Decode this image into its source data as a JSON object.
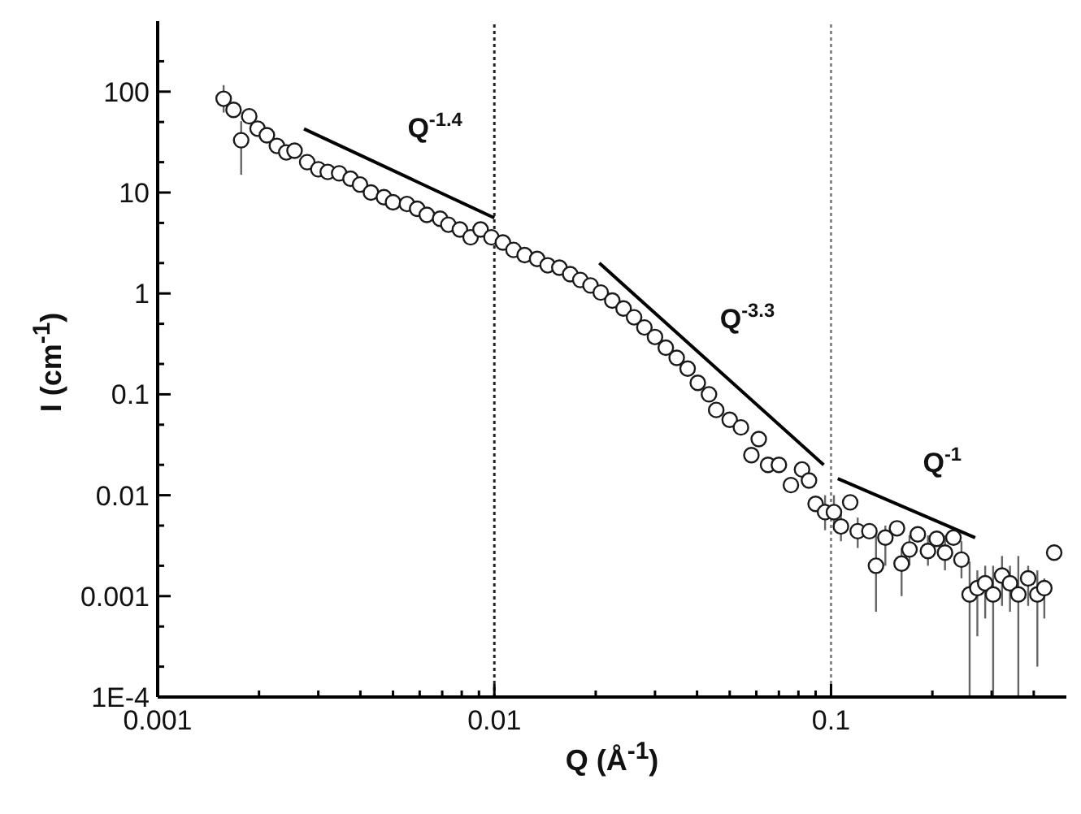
{
  "chart_data": {
    "type": "scatter",
    "xlabel": "Q (Å$^{-1}$)",
    "ylabel": "I (cm$^{-1}$)",
    "log": "xy",
    "xlim": [
      0.001,
      0.5
    ],
    "ylim": [
      0.0001,
      500
    ],
    "xticks": [
      0.001,
      {
        "value": 0.002,
        "label": null
      },
      {
        "value": 0.003,
        "label": null
      },
      {
        "value": 0.004,
        "label": null
      },
      {
        "value": 0.005,
        "label": null
      },
      {
        "value": 0.006,
        "label": null
      },
      {
        "value": 0.007,
        "label": null
      },
      {
        "value": 0.008,
        "label": null
      },
      {
        "value": 0.009,
        "label": null
      },
      0.01,
      {
        "value": 0.02,
        "label": null
      },
      {
        "value": 0.03,
        "label": null
      },
      {
        "value": 0.04,
        "label": null
      },
      {
        "value": 0.05,
        "label": null
      },
      {
        "value": 0.06,
        "label": null
      },
      {
        "value": 0.07,
        "label": null
      },
      {
        "value": 0.08,
        "label": null
      },
      {
        "value": 0.09,
        "label": null
      },
      0.1,
      {
        "value": 0.2,
        "label": null
      },
      {
        "value": 0.3,
        "label": null
      },
      {
        "value": 0.4,
        "label": null
      }
    ],
    "yticks": [
      {
        "value": 0.0001,
        "label": "1E-4"
      },
      {
        "value": 0.0002,
        "label": null
      },
      {
        "value": 0.0005,
        "label": null
      },
      0.001,
      {
        "value": 0.002,
        "label": null
      },
      {
        "value": 0.005,
        "label": null
      },
      0.01,
      {
        "value": 0.02,
        "label": null
      },
      {
        "value": 0.05,
        "label": null
      },
      0.1,
      {
        "value": 0.2,
        "label": null
      },
      {
        "value": 0.5,
        "label": null
      },
      1,
      {
        "value": 2,
        "label": null
      },
      {
        "value": 5,
        "label": null
      },
      10,
      {
        "value": 20,
        "label": null
      },
      {
        "value": 50,
        "label": null
      },
      100,
      {
        "value": 200,
        "label": null
      }
    ],
    "series": [
      {
        "marker": "circle",
        "color": "#1a1a1a",
        "x": [
          0.00157,
          0.00168,
          0.00177,
          0.00187,
          0.00198,
          0.00211,
          0.00226,
          0.00241,
          0.00255,
          0.00278,
          0.003,
          0.0032,
          0.00346,
          0.00374,
          0.00399,
          0.0043,
          0.0047,
          0.005,
          0.0055,
          0.0059,
          0.0063,
          0.0069,
          0.0073,
          0.0079,
          0.0085,
          0.0091,
          0.0098,
          0.0106,
          0.0114,
          0.0123,
          0.0134,
          0.0144,
          0.0156,
          0.0168,
          0.018,
          0.0193,
          0.0207,
          0.0224,
          0.0242,
          0.026,
          0.0279,
          0.03,
          0.0323,
          0.0348,
          0.0375,
          0.0402,
          0.0434,
          0.0456,
          0.05,
          0.054,
          0.058,
          0.061,
          0.065,
          0.07,
          0.076,
          0.082,
          0.086,
          0.09,
          0.096,
          0.102,
          0.107,
          0.114,
          0.12,
          0.13,
          0.136,
          0.145,
          0.157,
          0.162,
          0.171,
          0.181,
          0.194,
          0.206,
          0.218,
          0.231,
          0.244,
          0.258,
          0.272,
          0.287,
          0.303,
          0.322,
          0.34,
          0.36,
          0.385,
          0.41,
          0.43,
          0.46
        ],
        "values": [
          85,
          66,
          33,
          57,
          43,
          37,
          29,
          25,
          26,
          20,
          17,
          16,
          15.5,
          13.7,
          12,
          10,
          9,
          8,
          7.7,
          6.9,
          6,
          5.5,
          4.8,
          4.3,
          3.6,
          4.3,
          3.6,
          3.2,
          2.7,
          2.4,
          2.2,
          1.9,
          1.8,
          1.55,
          1.36,
          1.2,
          1.02,
          0.85,
          0.71,
          0.58,
          0.46,
          0.37,
          0.29,
          0.23,
          0.18,
          0.13,
          0.1,
          0.07,
          0.056,
          0.047,
          0.025,
          0.036,
          0.02,
          0.02,
          0.0126,
          0.018,
          0.014,
          0.0082,
          0.0068,
          0.0068,
          0.0049,
          0.0085,
          0.0044,
          0.0044,
          0.002,
          0.0038,
          0.0047,
          0.0021,
          0.0029,
          0.0041,
          0.0028,
          0.0037,
          0.0027,
          0.0038,
          0.0023,
          0.00104,
          0.0012,
          0.00134,
          0.00104,
          0.0016,
          0.00134,
          0.00104,
          0.0015,
          0.00104,
          0.0012,
          0.0027
        ],
        "errors": [
          [
            62,
            116
          ],
          null,
          [
            15,
            51
          ],
          null,
          null,
          null,
          null,
          null,
          null,
          null,
          null,
          null,
          null,
          null,
          null,
          null,
          null,
          null,
          null,
          null,
          null,
          null,
          null,
          null,
          null,
          null,
          null,
          null,
          null,
          null,
          null,
          null,
          null,
          null,
          null,
          null,
          null,
          null,
          null,
          null,
          null,
          null,
          null,
          null,
          null,
          null,
          null,
          null,
          null,
          null,
          null,
          null,
          null,
          null,
          null,
          null,
          null,
          null,
          [
            0.0045,
            0.01
          ],
          [
            0.0045,
            0.01
          ],
          [
            0.0035,
            0.007
          ],
          null,
          [
            0.003,
            0.006
          ],
          null,
          [
            0.0007,
            0.004
          ],
          [
            0.002,
            0.005
          ],
          null,
          [
            0.001,
            0.003
          ],
          [
            0.002,
            0.004
          ],
          null,
          [
            0.002,
            0.004
          ],
          null,
          [
            0.0018,
            0.004
          ],
          null,
          [
            0.0015,
            0.0035
          ],
          [
            0.0001,
            0.0022
          ],
          [
            0.0004,
            0.0018
          ],
          [
            0.0006,
            0.002
          ],
          [
            0.0001,
            0.002
          ],
          [
            0.0008,
            0.0025
          ],
          [
            0.0007,
            0.002
          ],
          [
            0.0001,
            0.0025
          ],
          [
            0.0008,
            0.002
          ],
          [
            0.0002,
            0.0018
          ],
          [
            0.0006,
            0.0015
          ],
          null
        ]
      },
      {
        "type": "line",
        "color": "#000000",
        "line_style": "solid",
        "x": [
          0.00272,
          0.01
        ],
        "values": [
          42.8,
          5.6
        ]
      },
      {
        "type": "line",
        "color": "#000000",
        "line_style": "solid",
        "x": [
          0.0205,
          0.0951
        ],
        "values": [
          2.0,
          0.02
        ]
      },
      {
        "type": "line",
        "color": "#000000",
        "line_style": "solid",
        "x": [
          0.1047,
          0.268
        ],
        "values": [
          0.0146,
          0.0038
        ]
      }
    ],
    "ref_lines": [
      {
        "axis": "x",
        "value": 0.01,
        "color": "#222222",
        "line_style": "dotted"
      },
      {
        "axis": "x",
        "value": 0.1,
        "color": "#888888",
        "line_style": "dotted"
      }
    ],
    "annotations": [
      "Q$^{-1.4}$",
      "Q$^{-3.3}$",
      "Q$^{-1}$"
    ]
  }
}
